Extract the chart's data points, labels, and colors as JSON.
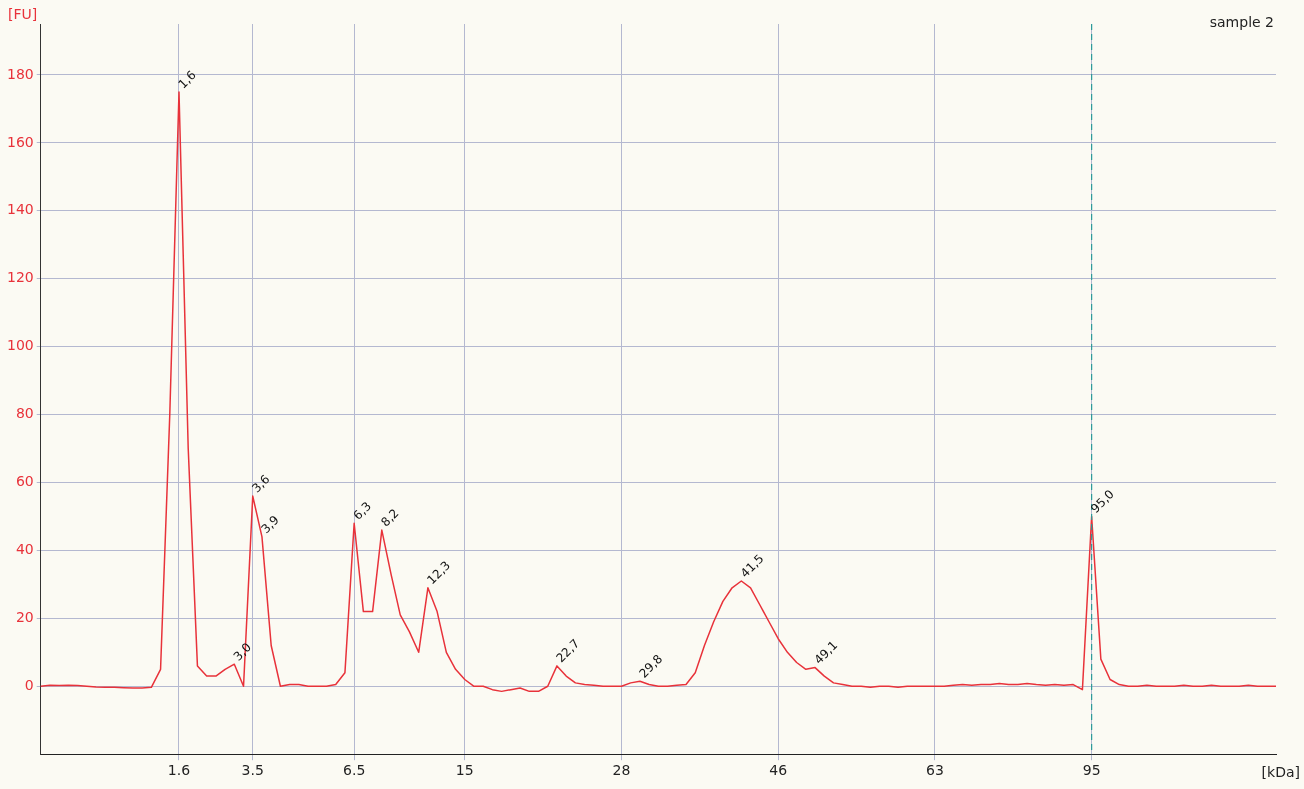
{
  "chart_data": {
    "type": "line",
    "title": "sample 2",
    "xlabel": "[kDa]",
    "ylabel": "[FU]",
    "categories": [
      null,
      null,
      null,
      null,
      null,
      null,
      null,
      null,
      null,
      null,
      null,
      null,
      null,
      null,
      null,
      "1.6",
      null,
      null,
      null,
      null,
      null,
      null,
      null,
      "3.5",
      null,
      null,
      null,
      null,
      null,
      null,
      null,
      null,
      null,
      null,
      "6.5",
      null,
      null,
      null,
      null,
      null,
      null,
      null,
      null,
      null,
      null,
      null,
      "15",
      null,
      null,
      null,
      null,
      null,
      null,
      null,
      null,
      null,
      null,
      null,
      null,
      null,
      null,
      null,
      null,
      "28",
      null,
      null,
      null,
      null,
      null,
      null,
      null,
      null,
      null,
      null,
      null,
      null,
      null,
      null,
      null,
      null,
      "46",
      null,
      null,
      null,
      null,
      null,
      null,
      null,
      null,
      null,
      null,
      null,
      null,
      null,
      null,
      null,
      null,
      "63",
      null,
      null,
      null,
      null,
      null,
      null,
      null,
      null,
      null,
      null,
      null,
      null,
      null,
      null,
      null,
      null,
      "95",
      null,
      null,
      null,
      null,
      null,
      null,
      null,
      null,
      null,
      null,
      null,
      null,
      null,
      null,
      null,
      null,
      null,
      null,
      null,
      null
    ],
    "series": [
      {
        "color": "#e8323a",
        "values": [
          0,
          0.3,
          0.2,
          0.3,
          0.2,
          0,
          -0.2,
          -0.3,
          -0.3,
          -0.4,
          -0.5,
          -0.5,
          -0.3,
          5,
          80,
          175,
          70,
          6,
          3,
          3,
          5,
          6.5,
          0,
          56,
          44,
          12,
          0,
          0.5,
          0.5,
          0,
          0,
          0,
          0.5,
          4,
          48,
          22,
          22,
          46,
          33,
          21,
          16,
          10,
          29,
          22,
          10,
          5,
          2,
          0,
          0,
          -1,
          -1.5,
          -1,
          -0.5,
          -1.5,
          -1.5,
          0,
          6,
          3,
          1,
          0.5,
          0.3,
          0,
          0,
          0,
          1,
          1.5,
          0.5,
          0,
          0,
          0.3,
          0.5,
          4,
          12,
          19,
          25,
          29,
          31,
          29,
          24,
          19,
          14,
          10,
          7,
          5,
          5.5,
          3,
          1,
          0.5,
          0,
          0,
          -0.3,
          0,
          0,
          -0.3,
          0,
          0,
          0,
          0,
          0,
          0.3,
          0.5,
          0.3,
          0.5,
          0.5,
          0.8,
          0.5,
          0.5,
          0.8,
          0.5,
          0.3,
          0.5,
          0.3,
          0.5,
          -1,
          50,
          8,
          2,
          0.5,
          0,
          0,
          0.3,
          0,
          0,
          0,
          0.3,
          0,
          0,
          0.3,
          0,
          0,
          0,
          0.3,
          0,
          0,
          0
        ]
      }
    ],
    "annotations": [
      {
        "text": "1,6",
        "x": "1.6",
        "y": 175
      },
      "3,0",
      "3,6",
      "3,9",
      "6,3",
      "8,2",
      "12,3",
      "22,7",
      "29,8",
      "41,5",
      "49,1",
      {
        "text": "95,0",
        "x": "95",
        "y": 50
      }
    ],
    "ylim": [
      -20,
      195
    ],
    "yticks": [
      0,
      20,
      40,
      60,
      80,
      100,
      120,
      140,
      160,
      180
    ],
    "ref_lines": [
      {
        "axis": "x",
        "value": "95",
        "color": "#2a9a9a",
        "line_style": "dashed"
      }
    ],
    "grid": true,
    "legend": false,
    "marker": "none",
    "line_style": "solid"
  }
}
